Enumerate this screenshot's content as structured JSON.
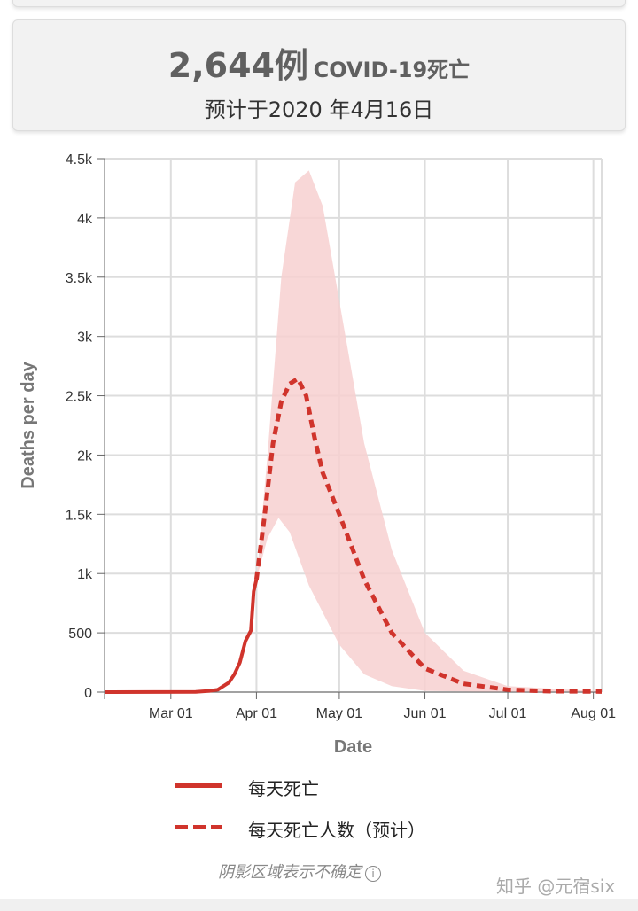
{
  "header": {
    "count": "2,644例",
    "label": "COVID-19死亡",
    "subtitle": "预计于2020 年4月16日"
  },
  "chart_data": {
    "type": "line",
    "xlabel": "Date",
    "ylabel": "Deaths per day",
    "xlim": [
      "2020-02-06",
      "2020-08-04"
    ],
    "ylim": [
      0,
      4500
    ],
    "x_ticks": [
      {
        "date": "2020-03-01",
        "label": "Mar 01"
      },
      {
        "date": "2020-04-01",
        "label": "Apr 01"
      },
      {
        "date": "2020-05-01",
        "label": "May 01"
      },
      {
        "date": "2020-06-01",
        "label": "Jun 01"
      },
      {
        "date": "2020-07-01",
        "label": "Jul 01"
      },
      {
        "date": "2020-08-01",
        "label": "Aug 01"
      }
    ],
    "y_ticks": [
      {
        "v": 0,
        "label": "0"
      },
      {
        "v": 500,
        "label": "500"
      },
      {
        "v": 1000,
        "label": "1k"
      },
      {
        "v": 1500,
        "label": "1.5k"
      },
      {
        "v": 2000,
        "label": "2k"
      },
      {
        "v": 2500,
        "label": "2.5k"
      },
      {
        "v": 3000,
        "label": "3k"
      },
      {
        "v": 3500,
        "label": "3.5k"
      },
      {
        "v": 4000,
        "label": "4k"
      },
      {
        "v": 4500,
        "label": "4.5k"
      }
    ],
    "grid": true,
    "series": [
      {
        "name": "每天死亡",
        "style": "solid",
        "color": "#d0342c",
        "points": [
          [
            "2020-02-06",
            0
          ],
          [
            "2020-03-10",
            2
          ],
          [
            "2020-03-15",
            10
          ],
          [
            "2020-03-18",
            20
          ],
          [
            "2020-03-20",
            50
          ],
          [
            "2020-03-22",
            80
          ],
          [
            "2020-03-24",
            150
          ],
          [
            "2020-03-26",
            250
          ],
          [
            "2020-03-28",
            430
          ],
          [
            "2020-03-30",
            520
          ],
          [
            "2020-03-31",
            850
          ],
          [
            "2020-04-01",
            950
          ]
        ]
      },
      {
        "name": "每天死亡人数（预计）",
        "style": "dashed",
        "color": "#d0342c",
        "points": [
          [
            "2020-04-01",
            950
          ],
          [
            "2020-04-04",
            1500
          ],
          [
            "2020-04-07",
            2100
          ],
          [
            "2020-04-10",
            2450
          ],
          [
            "2020-04-13",
            2600
          ],
          [
            "2020-04-16",
            2644
          ],
          [
            "2020-04-19",
            2500
          ],
          [
            "2020-04-22",
            2150
          ],
          [
            "2020-04-25",
            1850
          ],
          [
            "2020-05-01",
            1500
          ],
          [
            "2020-05-10",
            950
          ],
          [
            "2020-05-20",
            500
          ],
          [
            "2020-06-01",
            200
          ],
          [
            "2020-06-15",
            70
          ],
          [
            "2020-07-01",
            20
          ],
          [
            "2020-07-15",
            8
          ],
          [
            "2020-08-04",
            5
          ]
        ]
      }
    ],
    "uncertainty_band": {
      "color": "#f7d0d0",
      "upper": [
        [
          "2020-04-01",
          950
        ],
        [
          "2020-04-05",
          2000
        ],
        [
          "2020-04-10",
          3500
        ],
        [
          "2020-04-15",
          4300
        ],
        [
          "2020-04-20",
          4400
        ],
        [
          "2020-04-25",
          4100
        ],
        [
          "2020-05-01",
          3300
        ],
        [
          "2020-05-10",
          2100
        ],
        [
          "2020-05-20",
          1200
        ],
        [
          "2020-06-01",
          500
        ],
        [
          "2020-06-15",
          180
        ],
        [
          "2020-07-01",
          50
        ],
        [
          "2020-08-04",
          5
        ]
      ],
      "lower": [
        [
          "2020-04-01",
          950
        ],
        [
          "2020-04-05",
          1300
        ],
        [
          "2020-04-09",
          1470
        ],
        [
          "2020-04-13",
          1350
        ],
        [
          "2020-04-20",
          900
        ],
        [
          "2020-05-01",
          400
        ],
        [
          "2020-05-10",
          150
        ],
        [
          "2020-05-20",
          50
        ],
        [
          "2020-06-01",
          10
        ],
        [
          "2020-07-01",
          1
        ],
        [
          "2020-08-04",
          0
        ]
      ]
    }
  },
  "legend": {
    "actual": "每天死亡",
    "projected": "每天死亡人数（预计）"
  },
  "note": "阴影区域表示不确定",
  "info_icon": "i",
  "watermark": "知乎 @元宿six"
}
